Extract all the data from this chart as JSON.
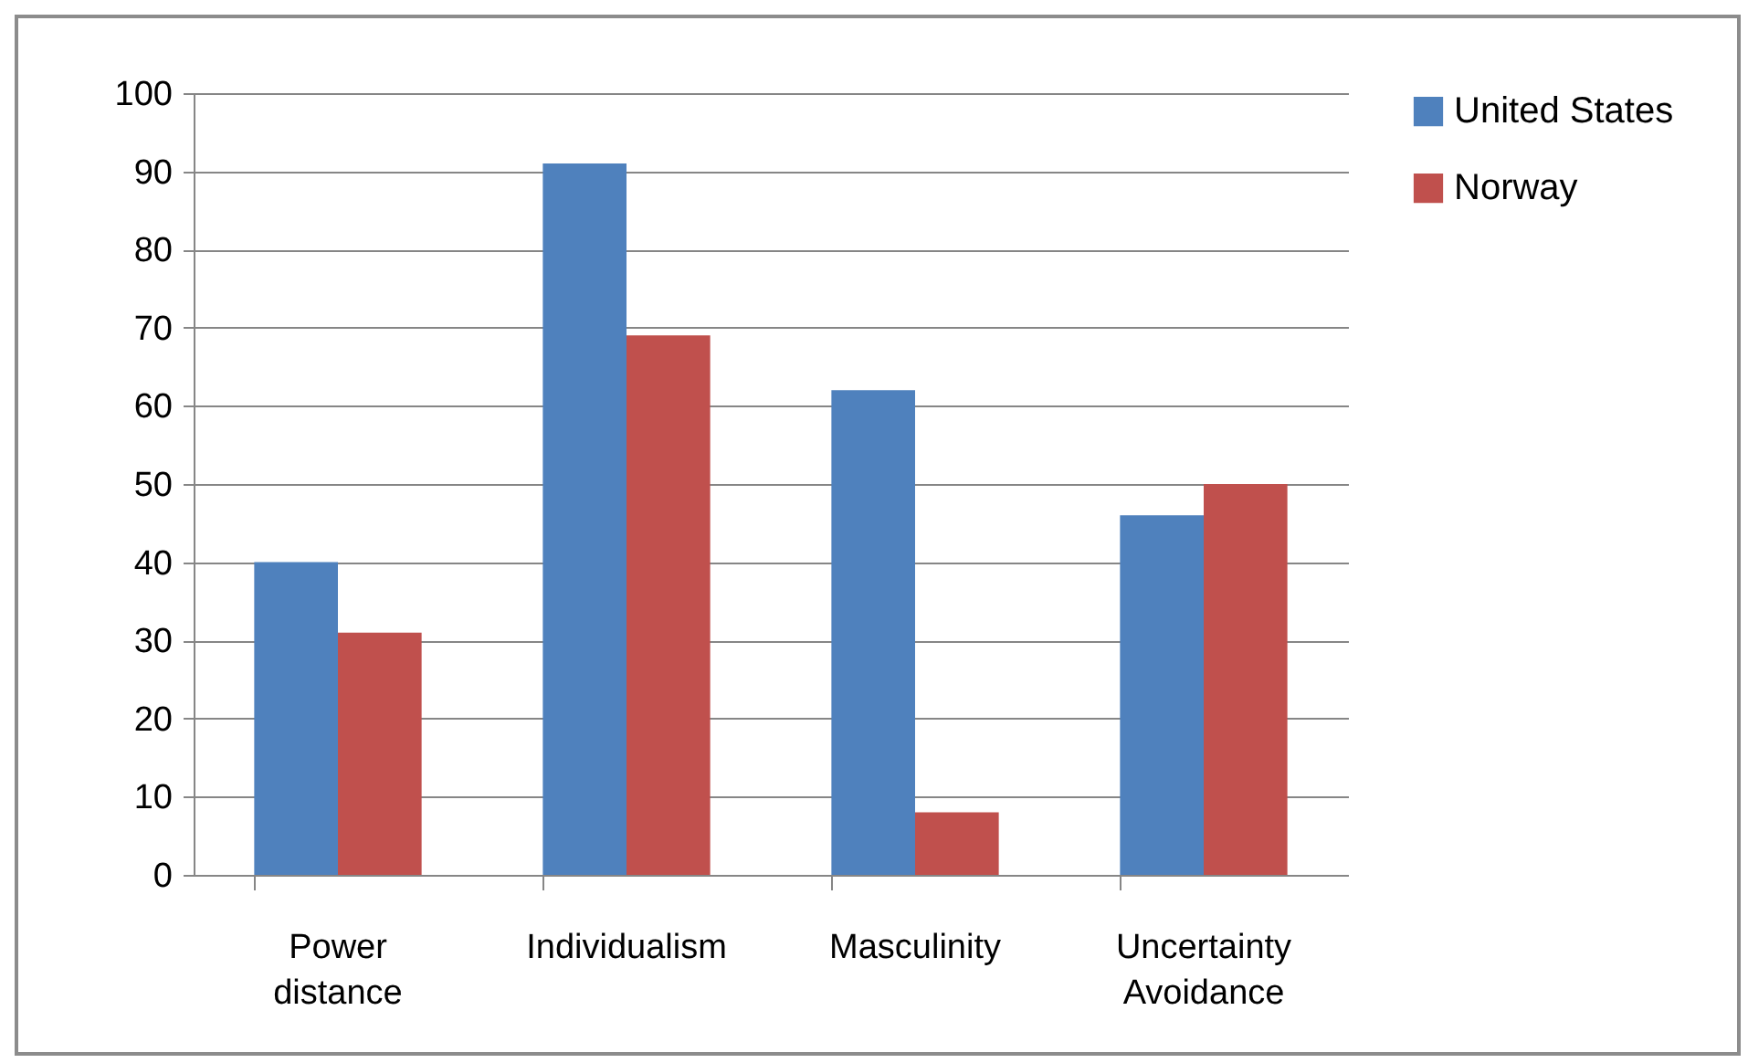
{
  "chart_data": {
    "type": "bar",
    "categories": [
      "Power distance",
      "Individualism",
      "Masculinity",
      "Uncertainty Avoidance"
    ],
    "series": [
      {
        "name": "United States",
        "color": "#4f81bd",
        "values": [
          40,
          91,
          62,
          46
        ]
      },
      {
        "name": "Norway",
        "color": "#c0504d",
        "values": [
          31,
          69,
          8,
          50
        ]
      }
    ],
    "ylim": [
      0,
      100
    ],
    "yticks": [
      0,
      10,
      20,
      30,
      40,
      50,
      60,
      70,
      80,
      90,
      100
    ],
    "grid": "y",
    "legend": "right"
  }
}
